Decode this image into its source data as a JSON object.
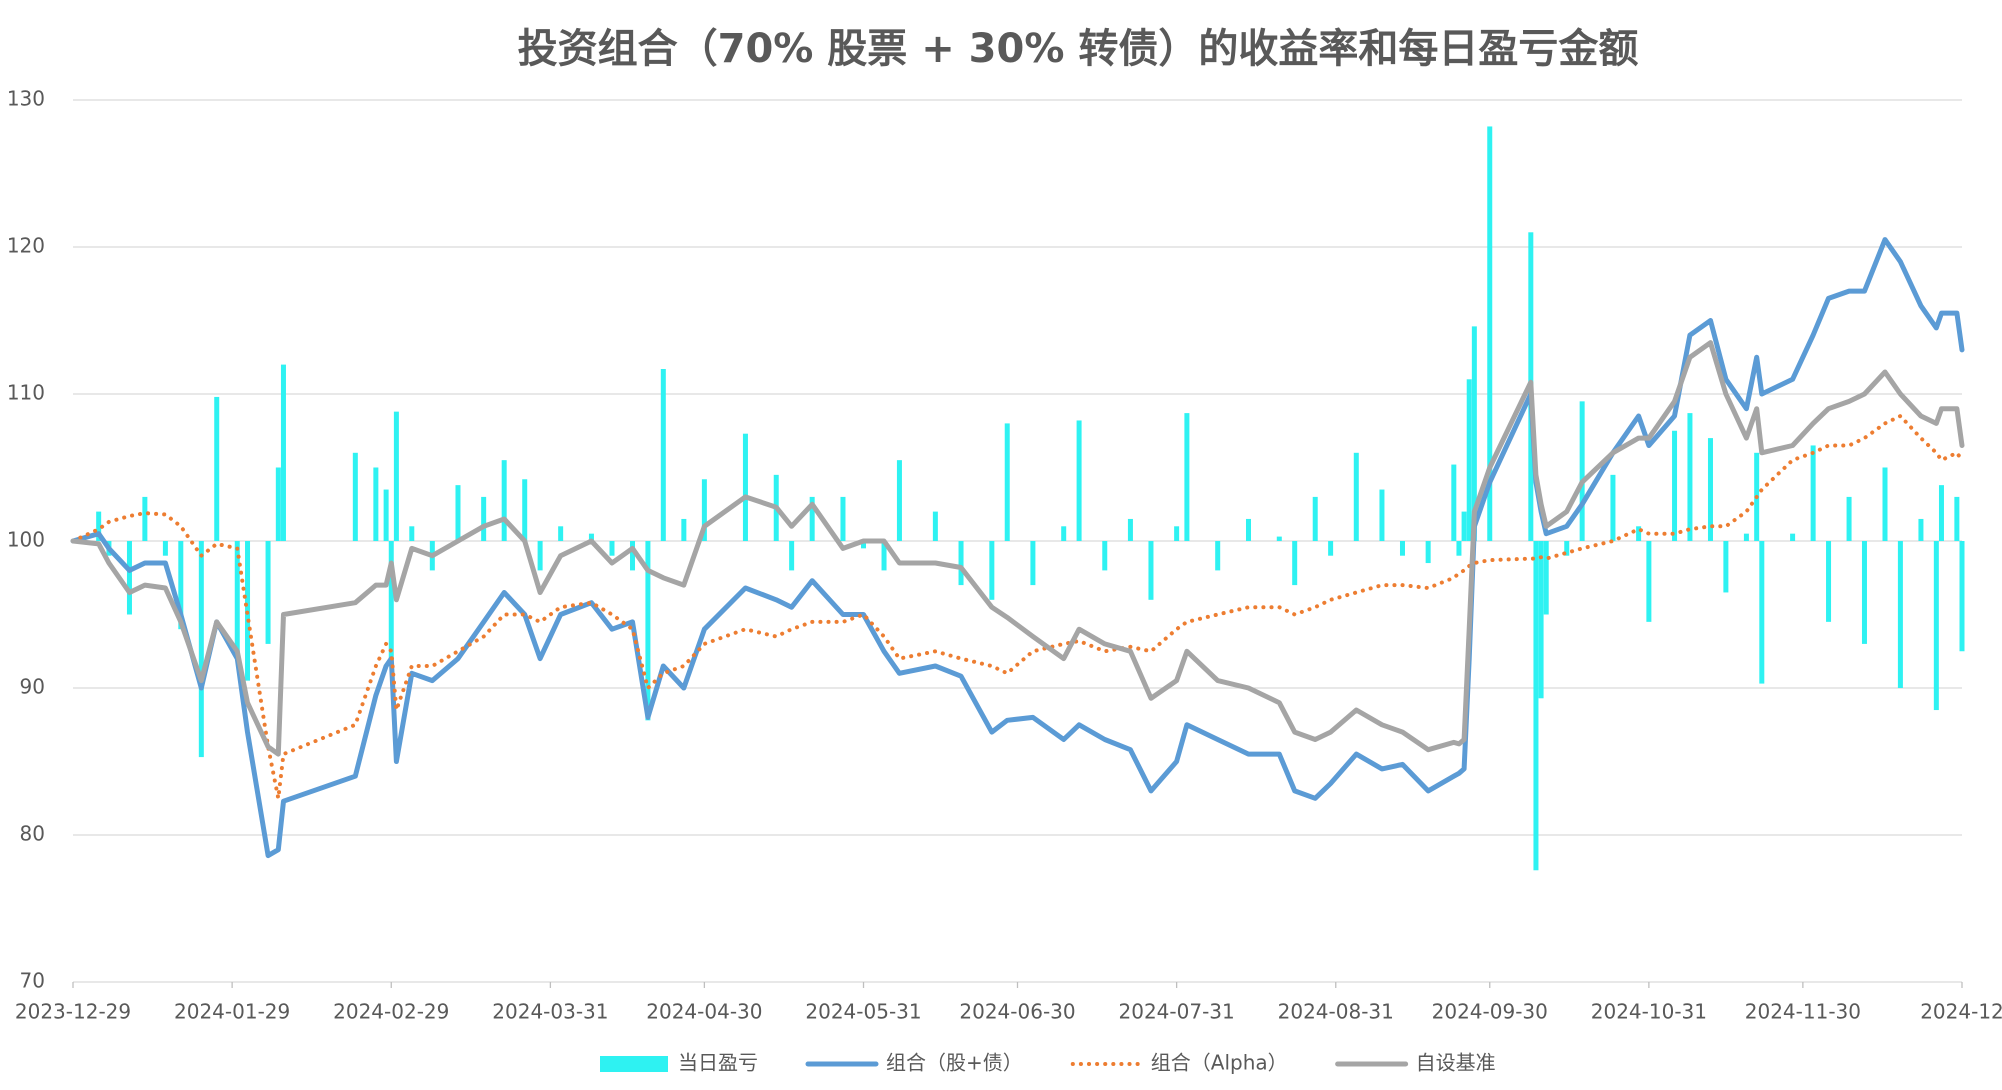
{
  "chart_data": {
    "type": "combo",
    "title": "投资组合（70% 股票 + 30% 转债）的收益率和每日盈亏金额",
    "x": [
      "2023-12-29",
      "2024-01-03",
      "2024-01-05",
      "2024-01-09",
      "2024-01-12",
      "2024-01-16",
      "2024-01-19",
      "2024-01-23",
      "2024-01-26",
      "2024-01-30",
      "2024-02-01",
      "2024-02-05",
      "2024-02-07",
      "2024-02-08",
      "2024-02-22",
      "2024-02-26",
      "2024-02-28",
      "2024-02-29",
      "2024-03-01",
      "2024-03-04",
      "2024-03-08",
      "2024-03-13",
      "2024-03-18",
      "2024-03-22",
      "2024-03-26",
      "2024-03-29",
      "2024-04-02",
      "2024-04-08",
      "2024-04-12",
      "2024-04-16",
      "2024-04-19",
      "2024-04-22",
      "2024-04-26",
      "2024-04-30",
      "2024-05-08",
      "2024-05-14",
      "2024-05-17",
      "2024-05-21",
      "2024-05-27",
      "2024-05-31",
      "2024-06-04",
      "2024-06-07",
      "2024-06-14",
      "2024-06-19",
      "2024-06-25",
      "2024-06-28",
      "2024-07-03",
      "2024-07-09",
      "2024-07-12",
      "2024-07-17",
      "2024-07-22",
      "2024-07-26",
      "2024-07-31",
      "2024-08-02",
      "2024-08-08",
      "2024-08-14",
      "2024-08-20",
      "2024-08-23",
      "2024-08-27",
      "2024-08-30",
      "2024-09-04",
      "2024-09-09",
      "2024-09-13",
      "2024-09-18",
      "2024-09-23",
      "2024-09-24",
      "2024-09-25",
      "2024-09-26",
      "2024-09-27",
      "2024-09-30",
      "2024-10-08",
      "2024-10-09",
      "2024-10-10",
      "2024-10-11",
      "2024-10-15",
      "2024-10-18",
      "2024-10-24",
      "2024-10-29",
      "2024-10-31",
      "2024-11-05",
      "2024-11-08",
      "2024-11-12",
      "2024-11-15",
      "2024-11-19",
      "2024-11-21",
      "2024-11-22",
      "2024-11-28",
      "2024-12-02",
      "2024-12-05",
      "2024-12-09",
      "2024-12-12",
      "2024-12-16",
      "2024-12-19",
      "2024-12-23",
      "2024-12-26",
      "2024-12-27",
      "2024-12-30",
      "2024-12-31"
    ],
    "series": [
      {
        "name": "当日盈亏",
        "type": "bar",
        "base": 100,
        "color": "#2ef2f2",
        "values": [
          100,
          102,
          99,
          95,
          103,
          99,
          94,
          85.3,
          109.8,
          92,
          90.5,
          93,
          105,
          112,
          106,
          105,
          103.5,
          92,
          108.8,
          101,
          98,
          103.8,
          103,
          105.5,
          104.2,
          98,
          101,
          100.5,
          99,
          98,
          87.8,
          111.7,
          101.5,
          104.2,
          107.3,
          104.5,
          98,
          103,
          103,
          99.5,
          98,
          105.5,
          102,
          97,
          96,
          108,
          97,
          101,
          108.2,
          98,
          101.5,
          96,
          101,
          108.7,
          98,
          101.5,
          100.3,
          97,
          103,
          99,
          106,
          103.5,
          99,
          98.5,
          105.2,
          99,
          102,
          111,
          114.6,
          128.2,
          121,
          77.6,
          89.3,
          95,
          99,
          109.5,
          104.5,
          101,
          94.5,
          107.5,
          108.7,
          107,
          96.5,
          100.5,
          106,
          90.3,
          100.5,
          106.5,
          94.5,
          103,
          93,
          105,
          90,
          101.5,
          88.5,
          103.8,
          103,
          92.5
        ]
      },
      {
        "name": "组合（股+债）",
        "type": "line",
        "color": "#5b9bd5",
        "values": [
          100,
          100.5,
          99.5,
          98,
          98.5,
          98.5,
          95,
          90,
          94.5,
          92,
          87,
          78.6,
          79,
          82.3,
          84,
          89.5,
          91.5,
          92,
          85,
          91,
          90.5,
          92,
          94.5,
          96.5,
          95,
          92,
          95,
          95.8,
          94,
          94.5,
          88,
          91.5,
          90,
          94,
          96.8,
          96,
          95.5,
          97.3,
          95,
          95,
          92.5,
          91,
          91.5,
          90.8,
          87,
          87.8,
          88,
          86.5,
          87.5,
          86.5,
          85.8,
          83,
          85,
          87.5,
          86.5,
          85.5,
          85.5,
          83,
          82.5,
          83.5,
          85.5,
          84.5,
          84.8,
          83,
          84,
          84.2,
          84.5,
          92,
          101,
          104,
          110,
          104,
          102,
          100.5,
          101,
          102.5,
          106,
          108.5,
          106.5,
          108.5,
          114,
          115,
          111,
          109,
          112.5,
          110,
          111,
          114,
          116.5,
          117,
          117,
          120.5,
          119,
          116,
          114.5,
          115.5,
          115.5,
          113
        ]
      },
      {
        "name": "组合（Alpha）",
        "type": "line",
        "dotted": true,
        "color": "#ed7d31",
        "values": [
          100,
          100.8,
          101.3,
          101.7,
          101.9,
          101.8,
          101,
          99,
          99.8,
          99.5,
          95,
          86,
          82.5,
          85.5,
          87.5,
          91.5,
          93,
          92.5,
          88.5,
          91.5,
          91.5,
          92.5,
          93.5,
          95,
          95,
          94.5,
          95.5,
          95.8,
          95,
          94,
          90,
          91,
          91.5,
          93,
          94,
          93.5,
          94,
          94.5,
          94.5,
          95,
          93.5,
          92,
          92.5,
          92,
          91.5,
          91,
          92.5,
          93,
          93.2,
          92.5,
          92.8,
          92.5,
          94,
          94.5,
          95,
          95.5,
          95.5,
          95,
          95.5,
          96,
          96.5,
          97,
          97,
          96.8,
          97.5,
          97.8,
          98,
          98.3,
          98.5,
          98.7,
          98.8,
          98.8,
          98.9,
          98.8,
          99.2,
          99.5,
          100,
          100.8,
          100.5,
          100.5,
          100.8,
          101,
          101,
          102,
          103,
          103.5,
          105.5,
          106,
          106.5,
          106.5,
          107,
          108,
          108.5,
          107,
          106,
          105.5,
          106,
          105.5
        ]
      },
      {
        "name": "自设基准",
        "type": "line",
        "color": "#a5a5a5",
        "values": [
          100,
          99.8,
          98.5,
          96.5,
          97,
          96.8,
          94.5,
          90.5,
          94.5,
          92.5,
          89,
          86,
          85.5,
          95,
          95.8,
          97,
          97,
          98.5,
          96,
          99.5,
          99,
          100,
          101,
          101.5,
          100,
          96.5,
          99,
          100,
          98.5,
          99.5,
          98,
          97.5,
          97,
          101,
          103,
          102.3,
          101,
          102.5,
          99.5,
          100,
          100,
          98.5,
          98.5,
          98.2,
          95.5,
          94.8,
          93.5,
          92,
          94,
          93,
          92.5,
          89.3,
          90.5,
          92.5,
          90.5,
          90,
          89,
          87,
          86.5,
          87,
          88.5,
          87.5,
          87,
          85.8,
          86.3,
          86.2,
          86.5,
          94,
          102,
          105,
          110.8,
          104.5,
          102.5,
          101,
          102,
          104,
          106,
          107,
          107,
          109.5,
          112.5,
          113.5,
          110,
          107,
          109,
          106,
          106.5,
          108,
          109,
          109.5,
          110,
          111.5,
          110,
          108.5,
          108,
          109,
          109,
          106.5
        ]
      }
    ],
    "ylim": [
      70,
      130
    ],
    "yticks": [
      70,
      80,
      90,
      100,
      110,
      120,
      130
    ],
    "xlim": [
      "2023-12-29",
      "2024-12-31"
    ],
    "xticks": [
      "2023-12-29",
      "2024-01-29",
      "2024-02-29",
      "2024-03-31",
      "2024-04-30",
      "2024-05-31",
      "2024-06-30",
      "2024-07-31",
      "2024-08-31",
      "2024-09-30",
      "2024-10-31",
      "2024-11-30",
      {
        "value": "2024-12-31",
        "label": "2024-12"
      }
    ],
    "grid": true,
    "legend": "bottom"
  }
}
